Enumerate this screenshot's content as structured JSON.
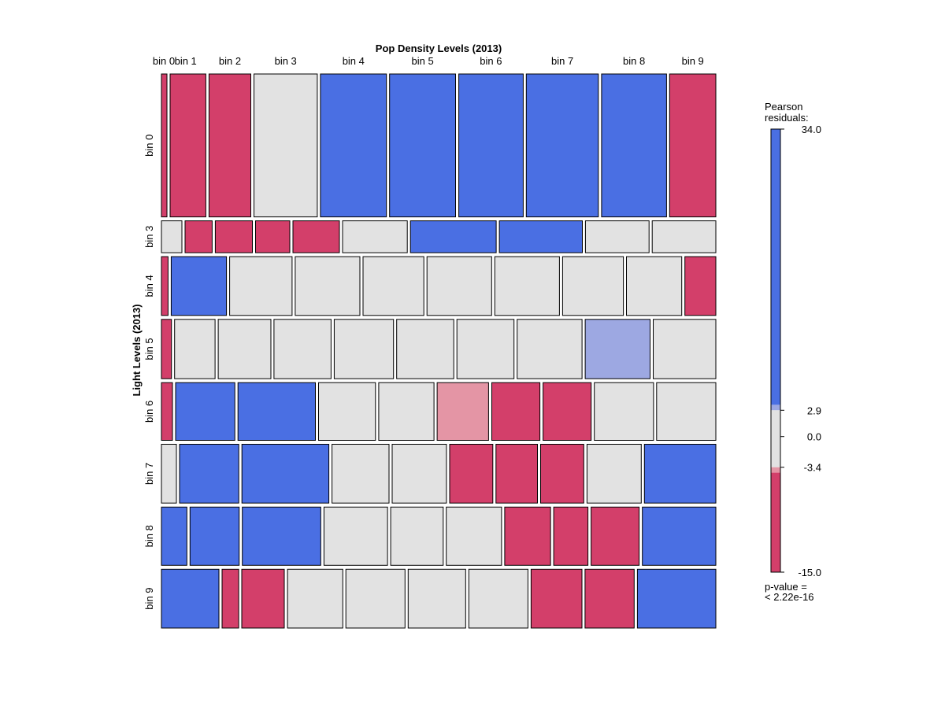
{
  "chart_data": {
    "type": "mosaic",
    "title": "",
    "xlabel": "Pop Density Levels (2013)",
    "ylabel": "Light Levels (2013)",
    "x_categories": [
      "bin 0",
      "bin 1",
      "bin 2",
      "bin 3",
      "bin 4",
      "bin 5",
      "bin 6",
      "bin 7",
      "bin 8",
      "bin 9"
    ],
    "y_categories": [
      "bin 0",
      "bin 3",
      "bin 4",
      "bin 5",
      "bin 6",
      "bin 7",
      "bin 8",
      "bin 9"
    ],
    "column_widths": [
      0.01,
      0.065,
      0.076,
      0.115,
      0.12,
      0.12,
      0.117,
      0.131,
      0.118,
      0.084
    ],
    "row_heights": [
      0.26,
      0.058,
      0.107,
      0.108,
      0.105,
      0.107,
      0.106,
      0.107
    ],
    "cells": [
      [
        {
          "w": 1,
          "r": "neg_strong"
        },
        {
          "w": 1,
          "r": "neg_strong"
        },
        {
          "w": 1,
          "r": "neg_strong"
        },
        {
          "w": 1,
          "r": "neutral"
        },
        {
          "w": 1,
          "r": "pos_strong"
        },
        {
          "w": 1,
          "r": "pos_strong"
        },
        {
          "w": 1,
          "r": "pos_strong"
        },
        {
          "w": 1,
          "r": "pos_strong"
        },
        {
          "w": 1,
          "r": "pos_strong"
        },
        {
          "w": 1,
          "r": "neg_strong"
        }
      ],
      [
        {
          "w": 1,
          "r": "neutral"
        },
        {
          "w": 0.56,
          "r": "neg_strong"
        },
        {
          "w": 0.6,
          "r": "neg_strong"
        },
        {
          "w": 0.53,
          "r": "neg_strong"
        },
        {
          "w": 0.7,
          "r": "neg_strong"
        },
        {
          "w": 1,
          "r": "neutral"
        },
        {
          "w": 1,
          "r": "pos_strong"
        },
        {
          "w": 1,
          "r": "pos_strong"
        },
        {
          "w": 1,
          "r": "neutral"
        },
        {
          "w": 1,
          "r": "neutral"
        }
      ],
      [
        {
          "w": 1,
          "r": "neg_strong"
        },
        {
          "w": 1,
          "r": "pos_strong"
        },
        {
          "w": 1,
          "r": "neutral"
        },
        {
          "w": 1,
          "r": "neutral"
        },
        {
          "w": 1,
          "r": "neutral"
        },
        {
          "w": 1,
          "r": "neutral"
        },
        {
          "w": 1,
          "r": "neutral"
        },
        {
          "w": 1,
          "r": "neutral"
        },
        {
          "w": 1,
          "r": "neutral"
        },
        {
          "w": 1,
          "r": "neg_strong"
        }
      ],
      [
        {
          "w": 1,
          "r": "neg_strong"
        },
        {
          "w": 1,
          "r": "neutral"
        },
        {
          "w": 1,
          "r": "neutral"
        },
        {
          "w": 1,
          "r": "neutral"
        },
        {
          "w": 1,
          "r": "neutral"
        },
        {
          "w": 1,
          "r": "neutral"
        },
        {
          "w": 1,
          "r": "neutral"
        },
        {
          "w": 1,
          "r": "neutral"
        },
        {
          "w": 1,
          "r": "pos_weak"
        },
        {
          "w": 1,
          "r": "neutral"
        }
      ],
      [
        {
          "w": 1,
          "r": "neg_strong"
        },
        {
          "w": 1,
          "r": "pos_strong"
        },
        {
          "w": 1,
          "r": "pos_strong"
        },
        {
          "w": 1,
          "r": "neutral"
        },
        {
          "w": 1,
          "r": "neutral"
        },
        {
          "w": 1,
          "r": "neg_weak"
        },
        {
          "w": 1,
          "r": "neg_strong"
        },
        {
          "w": 1,
          "r": "neg_strong"
        },
        {
          "w": 1,
          "r": "neutral"
        },
        {
          "w": 1,
          "r": "neutral"
        }
      ],
      [
        {
          "w": 1,
          "r": "neutral"
        },
        {
          "w": 1,
          "r": "pos_strong"
        },
        {
          "w": 1,
          "r": "pos_strong"
        },
        {
          "w": 1,
          "r": "neutral"
        },
        {
          "w": 1,
          "r": "neutral"
        },
        {
          "w": 1,
          "r": "neg_strong"
        },
        {
          "w": 1,
          "r": "neg_strong"
        },
        {
          "w": 1,
          "r": "neg_strong"
        },
        {
          "w": 1,
          "r": "neutral"
        },
        {
          "w": 1,
          "r": "pos_strong"
        }
      ],
      [
        {
          "w": 1,
          "r": "pos_strong"
        },
        {
          "w": 1,
          "r": "pos_strong"
        },
        {
          "w": 1,
          "r": "pos_strong"
        },
        {
          "w": 1,
          "r": "neutral"
        },
        {
          "w": 1,
          "r": "neutral"
        },
        {
          "w": 1,
          "r": "neutral"
        },
        {
          "w": 1,
          "r": "neg_strong"
        },
        {
          "w": 1,
          "r": "neg_strong"
        },
        {
          "w": 1,
          "r": "neg_strong"
        },
        {
          "w": 1,
          "r": "pos_strong"
        }
      ],
      [
        {
          "w": 1,
          "r": "pos_strong"
        },
        {
          "w": 1,
          "r": "neg_strong"
        },
        {
          "w": 1,
          "r": "neg_strong"
        },
        {
          "w": 1,
          "r": "neutral"
        },
        {
          "w": 1,
          "r": "neutral"
        },
        {
          "w": 1,
          "r": "neutral"
        },
        {
          "w": 1,
          "r": "neutral"
        },
        {
          "w": 1,
          "r": "neg_strong"
        },
        {
          "w": 1,
          "r": "neg_strong"
        },
        {
          "w": 1,
          "r": "pos_strong"
        }
      ]
    ],
    "row_col_widths": [
      [
        0.01,
        0.065,
        0.076,
        0.115,
        0.12,
        0.12,
        0.117,
        0.131,
        0.118,
        0.084
      ],
      [
        0.037,
        0.049,
        0.067,
        0.062,
        0.084,
        0.117,
        0.155,
        0.15,
        0.115,
        0.115
      ],
      [
        0.012,
        0.1,
        0.113,
        0.117,
        0.11,
        0.117,
        0.117,
        0.11,
        0.1,
        0.056
      ],
      [
        0.018,
        0.073,
        0.095,
        0.103,
        0.107,
        0.103,
        0.103,
        0.117,
        0.117,
        0.113
      ],
      [
        0.02,
        0.107,
        0.14,
        0.103,
        0.1,
        0.093,
        0.087,
        0.087,
        0.107,
        0.107
      ],
      [
        0.027,
        0.107,
        0.157,
        0.103,
        0.098,
        0.078,
        0.075,
        0.078,
        0.098,
        0.129
      ],
      [
        0.046,
        0.089,
        0.142,
        0.115,
        0.095,
        0.1,
        0.083,
        0.062,
        0.087,
        0.133
      ],
      [
        0.104,
        0.03,
        0.077,
        0.1,
        0.107,
        0.104,
        0.107,
        0.092,
        0.089,
        0.142
      ]
    ],
    "colors": {
      "pos_strong": "#4a6fe3",
      "pos_weak": "#9da8e2",
      "neutral": "#e2e2e2",
      "neg_weak": "#e495a5",
      "neg_strong": "#d33f6a"
    },
    "legend": {
      "title_line1": "Pearson",
      "title_line2": "residuals:",
      "ticks": [
        "34.0",
        "2.9",
        "0.0",
        "-3.4",
        "-15.0"
      ],
      "tick_values": [
        34.0,
        2.9,
        0.0,
        -3.4,
        -15.0
      ],
      "range": [
        -15.0,
        34.0
      ],
      "pvalue_line1": "p-value =",
      "pvalue_line2": "< 2.22e-16"
    }
  }
}
